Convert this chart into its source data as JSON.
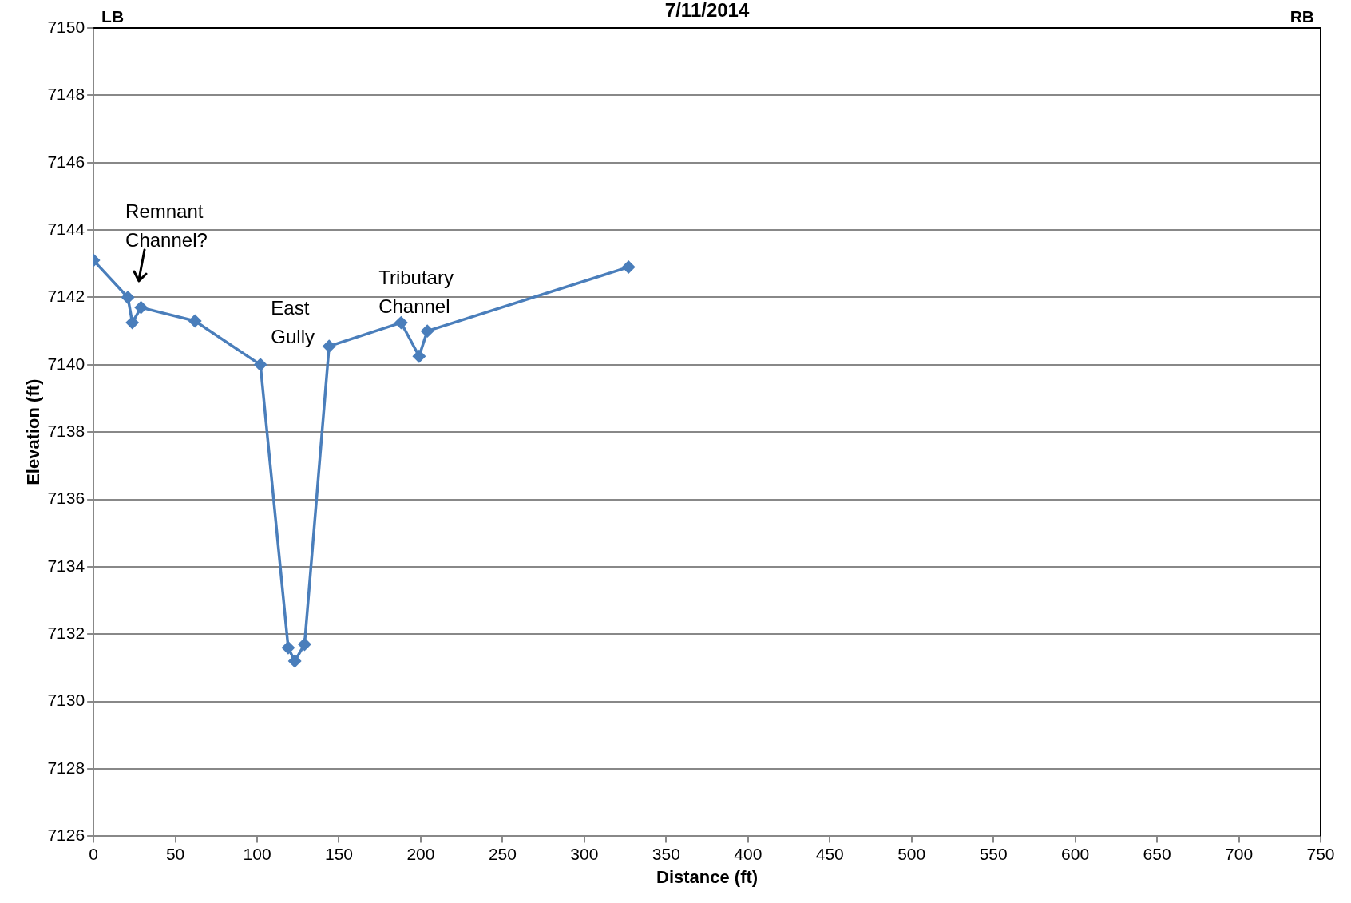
{
  "chart_data": {
    "type": "line",
    "title": "7/11/2014",
    "xlabel": "Distance (ft)",
    "ylabel": "Elevation (ft)",
    "x": [
      0,
      21,
      23.7,
      29,
      62,
      102,
      119,
      123,
      129,
      144,
      188,
      199,
      204,
      327
    ],
    "series": [
      {
        "color": "#4a7ebb",
        "values": [
          7143.1,
          7142.0,
          7141.25,
          7141.7,
          7141.3,
          7140.0,
          7131.6,
          7131.2,
          7131.7,
          7140.55,
          7141.25,
          7140.25,
          7141.0,
          7142.9
        ]
      }
    ],
    "xlim": [
      0,
      750
    ],
    "xticks": [
      0,
      50,
      100,
      150,
      200,
      250,
      300,
      350,
      400,
      450,
      500,
      550,
      600,
      650,
      700,
      750
    ],
    "ylim": [
      7126,
      7150
    ],
    "yticks": [
      7126,
      7128,
      7130,
      7132,
      7134,
      7136,
      7138,
      7140,
      7142,
      7144,
      7146,
      7148,
      7150
    ],
    "grid": "y",
    "legend": false,
    "marker": "diamond",
    "line_style": "solid",
    "annotations": [
      "LB",
      "RB",
      "Remnant Channel?",
      "East Gully",
      "Tributary Channel"
    ]
  }
}
